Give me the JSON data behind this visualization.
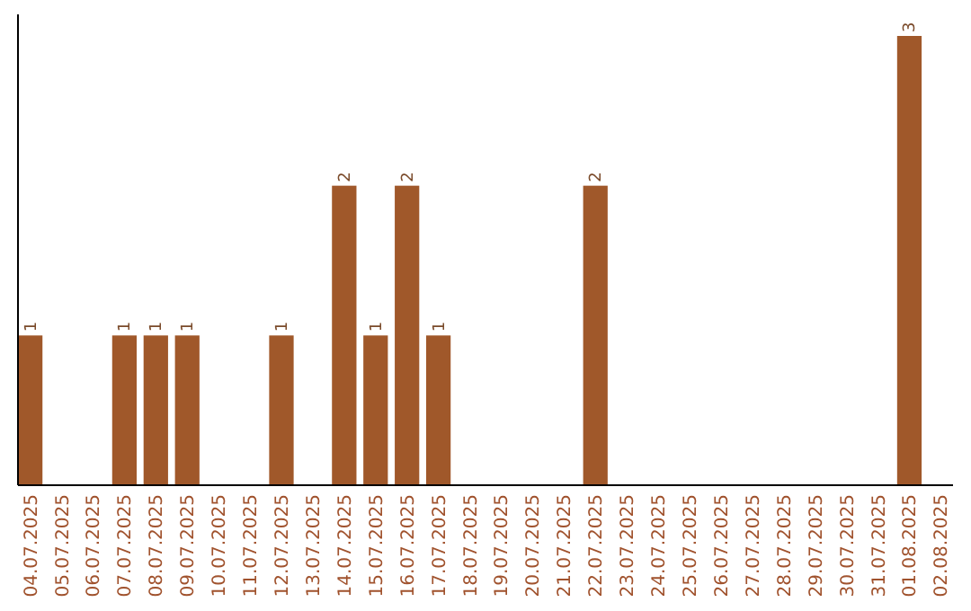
{
  "chart_data": {
    "type": "bar",
    "categories": [
      "04.07.2025",
      "05.07.2025",
      "06.07.2025",
      "07.07.2025",
      "08.07.2025",
      "09.07.2025",
      "10.07.2025",
      "11.07.2025",
      "12.07.2025",
      "13.07.2025",
      "14.07.2025",
      "15.07.2025",
      "16.07.2025",
      "17.07.2025",
      "18.07.2025",
      "19.07.2025",
      "20.07.2025",
      "21.07.2025",
      "22.07.2025",
      "23.07.2025",
      "24.07.2025",
      "25.07.2025",
      "26.07.2025",
      "27.07.2025",
      "28.07.2025",
      "29.07.2025",
      "30.07.2025",
      "31.07.2025",
      "01.08.2025",
      "02.08.2025"
    ],
    "values": [
      1,
      0,
      0,
      1,
      1,
      1,
      0,
      0,
      1,
      0,
      2,
      1,
      2,
      1,
      0,
      0,
      0,
      0,
      2,
      0,
      0,
      0,
      0,
      0,
      0,
      0,
      0,
      0,
      3,
      0
    ],
    "value_labels": [
      "1",
      null,
      null,
      "1",
      "1",
      "1",
      null,
      null,
      "1",
      null,
      "2",
      "1",
      "2",
      "1",
      null,
      null,
      null,
      null,
      "2",
      null,
      null,
      null,
      null,
      null,
      null,
      null,
      null,
      null,
      "3",
      null
    ],
    "color": "#a0582a"
  }
}
